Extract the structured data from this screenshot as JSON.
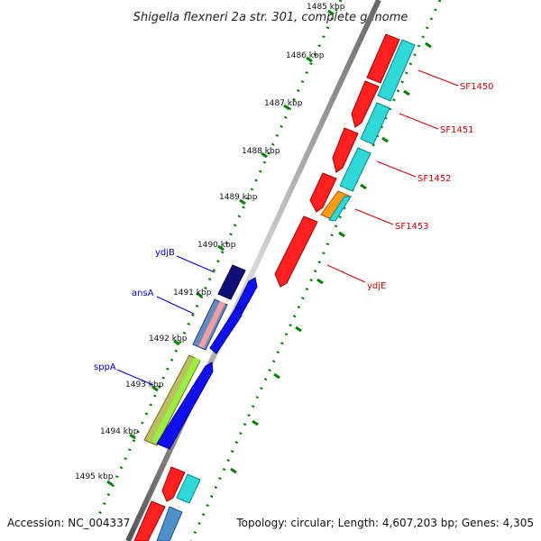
{
  "title": "Shigella flexneri 2a str. 301, complete genome",
  "kbp_labels": [
    "1485 kbp",
    "1486 kbp",
    "1487 kbp",
    "1488 kbp",
    "1489 kbp",
    "1490 kbp",
    "1491 kbp",
    "1492 kbp",
    "1493 kbp",
    "1494 kbp",
    "1495 kbp"
  ],
  "gene_labels": {
    "sf1450": "SF1450",
    "sf1451": "SF1451",
    "sf1452": "SF1452",
    "sf1453": "SF1453",
    "ydjE": "ydjE",
    "ydjB": "ydjB",
    "ansA": "ansA",
    "sppA": "sppA"
  },
  "footer": {
    "accession": "Accession: NC_004337",
    "topology": "Topology: circular; Length: 4,607,203 bp; Genes: 4,305"
  },
  "colors": {
    "forward_gene": "#ff0000",
    "reverse_gene": "#0000ee",
    "orf_cyan": "#00eeee",
    "tick_green": "#008000",
    "backbone": "#888888",
    "label_red": "#cc0000",
    "label_blue": "#0000cc"
  }
}
